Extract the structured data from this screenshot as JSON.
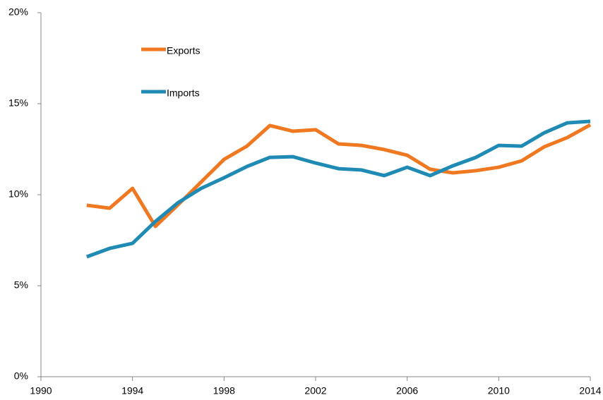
{
  "chart_data": {
    "type": "line",
    "x": [
      1992,
      1993,
      1994,
      1995,
      1996,
      1997,
      1998,
      1999,
      2000,
      2001,
      2002,
      2003,
      2004,
      2005,
      2006,
      2007,
      2008,
      2009,
      2010,
      2011,
      2012,
      2013,
      2014
    ],
    "series": [
      {
        "name": "Exports",
        "color": "#f07820",
        "values": [
          9.42,
          9.26,
          10.35,
          8.26,
          9.46,
          10.7,
          11.94,
          12.67,
          13.8,
          13.49,
          13.57,
          12.79,
          12.71,
          12.48,
          12.17,
          11.4,
          11.2,
          11.32,
          11.51,
          11.86,
          12.64,
          13.14,
          13.84
        ]
      },
      {
        "name": "Imports",
        "color": "#1f8bb5",
        "values": [
          6.59,
          7.05,
          7.33,
          8.53,
          9.57,
          10.35,
          10.93,
          11.55,
          12.05,
          12.09,
          11.74,
          11.43,
          11.36,
          11.05,
          11.51,
          11.05,
          11.59,
          12.05,
          12.71,
          12.67,
          13.41,
          13.95,
          14.03
        ]
      }
    ],
    "xlim": [
      1990,
      2014
    ],
    "xticks": [
      1990,
      1994,
      1998,
      2002,
      2006,
      2010,
      2014
    ],
    "ylim": [
      0,
      20
    ],
    "yticks": [
      {
        "value": 0,
        "label": "0%"
      },
      {
        "value": 5,
        "label": "5%"
      },
      {
        "value": 10,
        "label": "10%"
      },
      {
        "value": 15,
        "label": "15%"
      },
      {
        "value": 20,
        "label": "20%"
      }
    ],
    "legend": "upper left"
  }
}
